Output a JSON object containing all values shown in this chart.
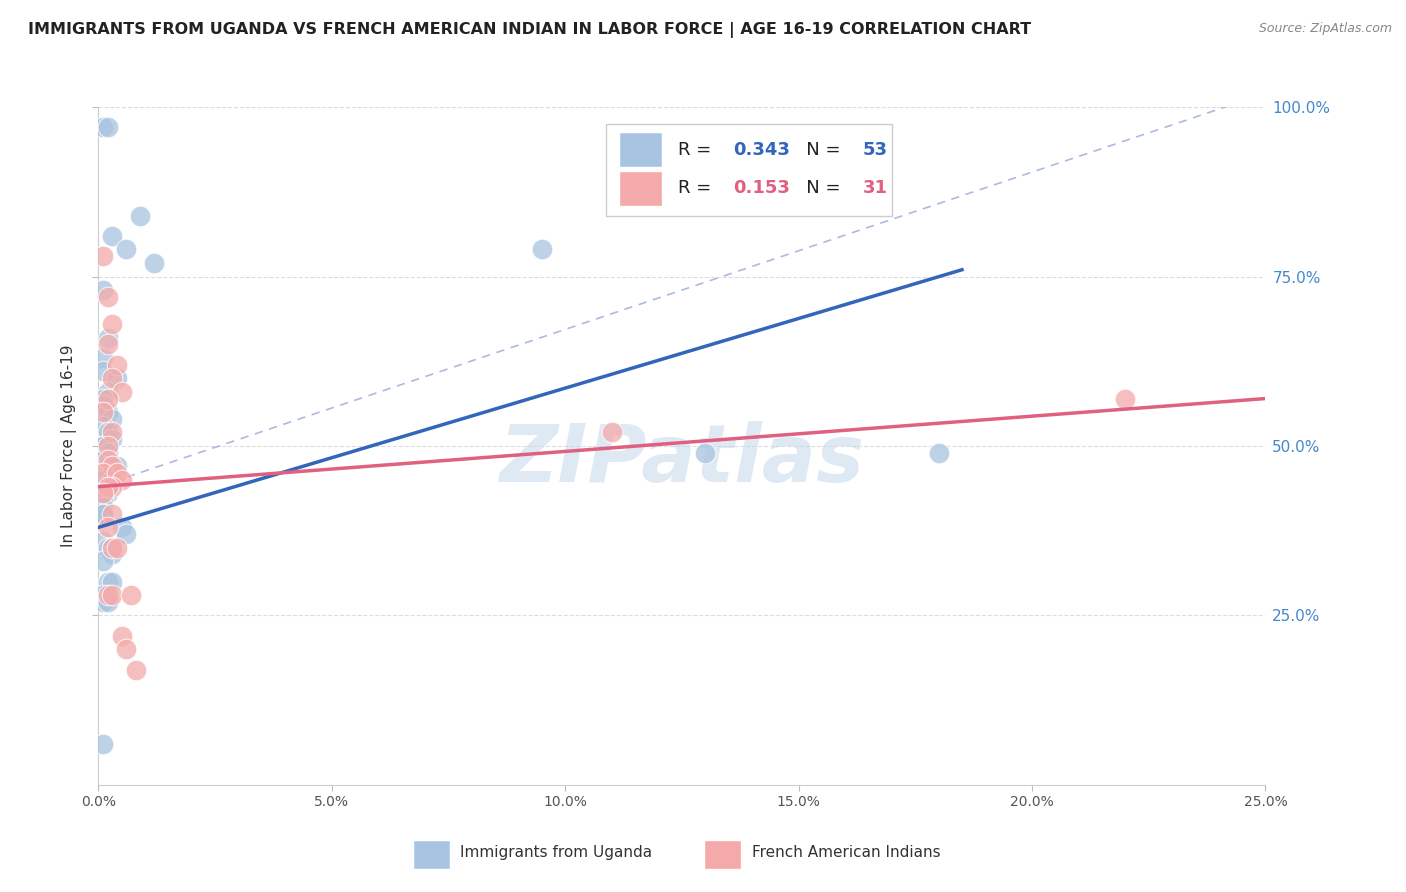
{
  "title": "IMMIGRANTS FROM UGANDA VS FRENCH AMERICAN INDIAN IN LABOR FORCE | AGE 16-19 CORRELATION CHART",
  "source": "Source: ZipAtlas.com",
  "ylabel": "In Labor Force | Age 16-19",
  "xlabel": "Immigrants from Uganda",
  "xlabel2": "French American Indians",
  "xlim": [
    0.0,
    0.25
  ],
  "ylim": [
    0.0,
    1.0
  ],
  "xtick_labels": [
    "0.0%",
    "5.0%",
    "10.0%",
    "15.0%",
    "20.0%",
    "25.0%"
  ],
  "xtick_vals": [
    0.0,
    0.05,
    0.1,
    0.15,
    0.2,
    0.25
  ],
  "ytick_labels_right": [
    "25.0%",
    "50.0%",
    "75.0%",
    "100.0%"
  ],
  "ytick_vals": [
    0.25,
    0.5,
    0.75,
    1.0
  ],
  "r_blue": 0.343,
  "n_blue": 53,
  "r_pink": 0.153,
  "n_pink": 31,
  "blue_color": "#A8C4E0",
  "pink_color": "#F4AAAA",
  "blue_line_color": "#3366BB",
  "pink_line_color": "#E06080",
  "blue_scatter": [
    [
      0.001,
      0.97
    ],
    [
      0.002,
      0.97
    ],
    [
      0.003,
      0.81
    ],
    [
      0.001,
      0.73
    ],
    [
      0.006,
      0.79
    ],
    [
      0.012,
      0.77
    ],
    [
      0.002,
      0.66
    ],
    [
      0.001,
      0.63
    ],
    [
      0.001,
      0.61
    ],
    [
      0.004,
      0.6
    ],
    [
      0.002,
      0.58
    ],
    [
      0.001,
      0.57
    ],
    [
      0.001,
      0.56
    ],
    [
      0.002,
      0.55
    ],
    [
      0.003,
      0.54
    ],
    [
      0.001,
      0.53
    ],
    [
      0.002,
      0.52
    ],
    [
      0.003,
      0.51
    ],
    [
      0.001,
      0.5
    ],
    [
      0.001,
      0.5
    ],
    [
      0.001,
      0.5
    ],
    [
      0.002,
      0.49
    ],
    [
      0.001,
      0.48
    ],
    [
      0.001,
      0.48
    ],
    [
      0.002,
      0.47
    ],
    [
      0.004,
      0.47
    ],
    [
      0.001,
      0.46
    ],
    [
      0.002,
      0.46
    ],
    [
      0.001,
      0.45
    ],
    [
      0.003,
      0.45
    ],
    [
      0.001,
      0.44
    ],
    [
      0.002,
      0.43
    ],
    [
      0.001,
      0.42
    ],
    [
      0.001,
      0.41
    ],
    [
      0.001,
      0.4
    ],
    [
      0.001,
      0.4
    ],
    [
      0.005,
      0.38
    ],
    [
      0.006,
      0.37
    ],
    [
      0.001,
      0.36
    ],
    [
      0.002,
      0.35
    ],
    [
      0.003,
      0.35
    ],
    [
      0.003,
      0.34
    ],
    [
      0.001,
      0.33
    ],
    [
      0.002,
      0.3
    ],
    [
      0.003,
      0.3
    ],
    [
      0.001,
      0.28
    ],
    [
      0.001,
      0.27
    ],
    [
      0.002,
      0.27
    ],
    [
      0.001,
      0.06
    ],
    [
      0.009,
      0.84
    ],
    [
      0.095,
      0.79
    ],
    [
      0.13,
      0.49
    ],
    [
      0.18,
      0.49
    ]
  ],
  "pink_scatter": [
    [
      0.001,
      0.78
    ],
    [
      0.002,
      0.72
    ],
    [
      0.003,
      0.68
    ],
    [
      0.002,
      0.65
    ],
    [
      0.004,
      0.62
    ],
    [
      0.003,
      0.6
    ],
    [
      0.005,
      0.58
    ],
    [
      0.002,
      0.57
    ],
    [
      0.001,
      0.55
    ],
    [
      0.003,
      0.52
    ],
    [
      0.002,
      0.5
    ],
    [
      0.002,
      0.48
    ],
    [
      0.003,
      0.47
    ],
    [
      0.001,
      0.46
    ],
    [
      0.004,
      0.46
    ],
    [
      0.005,
      0.45
    ],
    [
      0.003,
      0.44
    ],
    [
      0.002,
      0.44
    ],
    [
      0.001,
      0.43
    ],
    [
      0.003,
      0.4
    ],
    [
      0.002,
      0.38
    ],
    [
      0.003,
      0.35
    ],
    [
      0.004,
      0.35
    ],
    [
      0.002,
      0.28
    ],
    [
      0.003,
      0.28
    ],
    [
      0.007,
      0.28
    ],
    [
      0.005,
      0.22
    ],
    [
      0.008,
      0.17
    ],
    [
      0.006,
      0.2
    ],
    [
      0.11,
      0.52
    ],
    [
      0.22,
      0.57
    ]
  ],
  "blue_line_x": [
    0.0,
    0.185
  ],
  "blue_line_y": [
    0.38,
    0.76
  ],
  "pink_line_x": [
    0.0,
    0.25
  ],
  "pink_line_y": [
    0.44,
    0.57
  ],
  "diag_line_x": [
    0.0,
    0.25
  ],
  "diag_line_y": [
    0.44,
    1.02
  ],
  "watermark_text": "ZIPatlas",
  "background_color": "#FFFFFF",
  "grid_color": "#DDDDDD",
  "title_fontsize": 11.5,
  "axis_label_fontsize": 11,
  "tick_fontsize": 10,
  "legend_r_label": "R = ",
  "legend_n_label": "   N = "
}
